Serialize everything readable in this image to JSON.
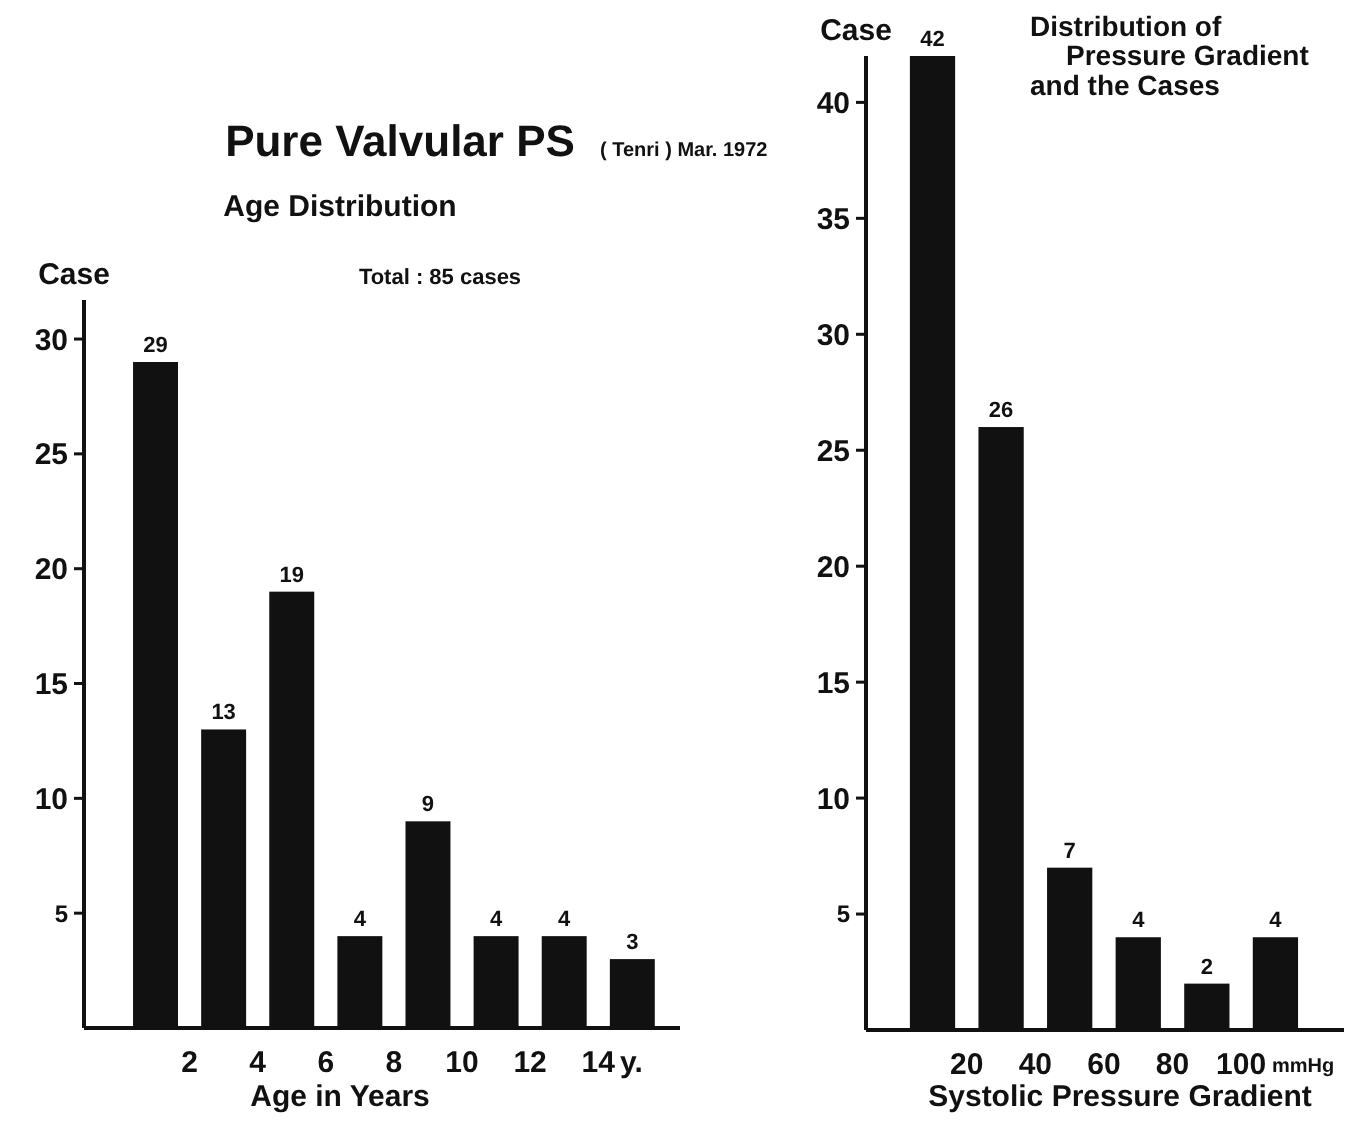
{
  "chart_data": [
    {
      "type": "histogram",
      "title": "Pure Valvular PS",
      "subtitle": "Age Distribution",
      "annotations": [
        "( Tenri ) Mar. 1972",
        "Total :  85 cases",
        "y."
      ],
      "xlabel": "Age in Years",
      "ylabel": "Case",
      "bins": [
        0,
        2,
        4,
        6,
        8,
        10,
        12,
        14,
        16
      ],
      "values": [
        29,
        13,
        19,
        4,
        9,
        4,
        4,
        3
      ],
      "color": "#111111",
      "data_labels": true,
      "xlim": [
        -1.1,
        16.4
      ],
      "xticks": [
        2,
        4,
        6,
        8,
        10,
        12,
        14
      ],
      "ylim": [
        0,
        31.7
      ],
      "yticks": [
        5,
        10,
        15,
        20,
        25,
        30
      ],
      "grid": false
    },
    {
      "type": "histogram",
      "title": "Distribution of\nPressure Gradient\nand the Cases",
      "annotations": [
        "mmHg"
      ],
      "xlabel": "Systolic Pressure Gradient",
      "ylabel": "Case",
      "bins": [
        0,
        20,
        40,
        60,
        80,
        100,
        120
      ],
      "values": [
        42,
        26,
        7,
        4,
        2,
        4
      ],
      "color": "#111111",
      "data_labels": true,
      "xlim": [
        -9.4,
        130
      ],
      "xticks": [
        20,
        40,
        60,
        80,
        100
      ],
      "ylim": [
        0,
        42
      ],
      "yticks": [
        5,
        10,
        15,
        20,
        25,
        30,
        35,
        40
      ],
      "grid": false
    }
  ]
}
